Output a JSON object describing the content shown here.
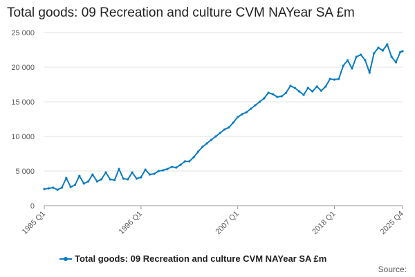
{
  "chart_data": {
    "type": "line",
    "title": "Total goods: 09 Recreation and culture CVM NAYear SA £m",
    "xlabel": "",
    "ylabel": "",
    "ylim": [
      0,
      25000
    ],
    "yticks": [
      "0",
      "5 000",
      "10 000",
      "15 000",
      "20 000",
      "25 000"
    ],
    "xticks": [
      "1985 Q1",
      "1996 Q1",
      "2007 Q1",
      "2018 Q1",
      "2025 Q4"
    ],
    "grid": true,
    "legend_position": "bottom",
    "series": [
      {
        "name": "Total goods: 09 Recreation and culture CVM NAYear SA £m",
        "color": "#0a7bc1",
        "points": [
          [
            "1985 Q1",
            2400
          ],
          [
            "1985 Q3",
            2500
          ],
          [
            "1986 Q1",
            2600
          ],
          [
            "1986 Q3",
            2300
          ],
          [
            "1987 Q1",
            2600
          ],
          [
            "1987 Q3",
            4000
          ],
          [
            "1988 Q1",
            2700
          ],
          [
            "1988 Q3",
            3000
          ],
          [
            "1989 Q1",
            4300
          ],
          [
            "1989 Q3",
            3200
          ],
          [
            "1990 Q1",
            3500
          ],
          [
            "1990 Q3",
            4500
          ],
          [
            "1991 Q1",
            3500
          ],
          [
            "1991 Q3",
            3800
          ],
          [
            "1992 Q1",
            4800
          ],
          [
            "1992 Q3",
            3800
          ],
          [
            "1993 Q1",
            3700
          ],
          [
            "1993 Q3",
            5300
          ],
          [
            "1994 Q1",
            3900
          ],
          [
            "1994 Q3",
            3800
          ],
          [
            "1995 Q1",
            4800
          ],
          [
            "1995 Q3",
            3900
          ],
          [
            "1996 Q1",
            4100
          ],
          [
            "1996 Q3",
            5200
          ],
          [
            "1997 Q1",
            4500
          ],
          [
            "1997 Q3",
            4600
          ],
          [
            "1998 Q1",
            5000
          ],
          [
            "1998 Q3",
            5100
          ],
          [
            "1999 Q1",
            5300
          ],
          [
            "1999 Q3",
            5600
          ],
          [
            "2000 Q1",
            5500
          ],
          [
            "2000 Q3",
            5900
          ],
          [
            "2001 Q1",
            6400
          ],
          [
            "2001 Q3",
            6400
          ],
          [
            "2002 Q1",
            7000
          ],
          [
            "2002 Q3",
            7800
          ],
          [
            "2003 Q1",
            8500
          ],
          [
            "2003 Q3",
            9000
          ],
          [
            "2004 Q1",
            9500
          ],
          [
            "2004 Q3",
            10000
          ],
          [
            "2005 Q1",
            10500
          ],
          [
            "2005 Q3",
            11000
          ],
          [
            "2006 Q1",
            11300
          ],
          [
            "2006 Q3",
            12000
          ],
          [
            "2007 Q1",
            12800
          ],
          [
            "2007 Q3",
            13200
          ],
          [
            "2008 Q1",
            13500
          ],
          [
            "2008 Q3",
            14000
          ],
          [
            "2009 Q1",
            14500
          ],
          [
            "2009 Q3",
            15000
          ],
          [
            "2010 Q1",
            15500
          ],
          [
            "2010 Q3",
            16300
          ],
          [
            "2011 Q1",
            16100
          ],
          [
            "2011 Q3",
            15700
          ],
          [
            "2012 Q1",
            15800
          ],
          [
            "2012 Q3",
            16300
          ],
          [
            "2013 Q1",
            17300
          ],
          [
            "2013 Q3",
            17000
          ],
          [
            "2014 Q1",
            16500
          ],
          [
            "2014 Q3",
            16000
          ],
          [
            "2015 Q1",
            17000
          ],
          [
            "2015 Q3",
            16500
          ],
          [
            "2016 Q1",
            17200
          ],
          [
            "2016 Q3",
            16600
          ],
          [
            "2017 Q1",
            17200
          ],
          [
            "2017 Q3",
            18300
          ],
          [
            "2018 Q1",
            18200
          ],
          [
            "2018 Q3",
            18300
          ],
          [
            "2019 Q1",
            20200
          ],
          [
            "2019 Q3",
            21000
          ],
          [
            "2020 Q1",
            19800
          ],
          [
            "2020 Q3",
            21500
          ],
          [
            "2021 Q1",
            21800
          ],
          [
            "2021 Q3",
            21000
          ],
          [
            "2022 Q1",
            19200
          ],
          [
            "2022 Q3",
            22000
          ],
          [
            "2023 Q1",
            22800
          ],
          [
            "2023 Q3",
            22400
          ],
          [
            "2024 Q1",
            23300
          ],
          [
            "2024 Q3",
            21500
          ],
          [
            "2025 Q1",
            20700
          ],
          [
            "2025 Q3",
            22200
          ],
          [
            "2025 Q4",
            22300
          ]
        ]
      }
    ]
  },
  "legend": {
    "label": "Total goods: 09 Recreation and culture CVM NAYear SA £m"
  },
  "source": {
    "label": "Source:"
  }
}
